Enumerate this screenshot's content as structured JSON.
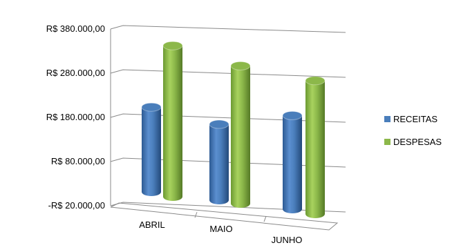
{
  "chart_data": {
    "type": "bar",
    "style": "3d-cylinder",
    "categories": [
      "ABRIL",
      "MAIO",
      "JUNHO"
    ],
    "series": [
      {
        "name": "RECEITAS",
        "values": [
          200000,
          180000,
          220000
        ],
        "color": "#4a7ebb"
      },
      {
        "name": "DESPESAS",
        "values": [
          350000,
          320000,
          310000
        ],
        "color": "#8cb84a"
      }
    ],
    "y_ticks": [
      "-R$ 20.000,00",
      "R$ 80.000,00",
      "R$ 180.000,00",
      "R$ 280.000,00",
      "R$ 380.000,00"
    ],
    "y_tick_values": [
      -20000,
      80000,
      180000,
      280000,
      380000
    ],
    "ylim": [
      -20000,
      380000
    ],
    "grid": true,
    "legend_position": "right",
    "title": "",
    "xlabel": "",
    "ylabel": ""
  }
}
